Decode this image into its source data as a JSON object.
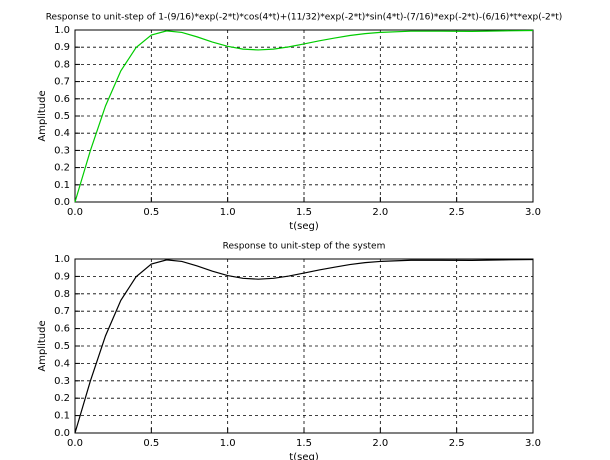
{
  "chart_data": [
    {
      "type": "line",
      "title": "Response to unit-step of 1-(9/16)*exp(-2*t)*cos(4*t)+(11/32)*exp(-2*t)*sin(4*t)-(7/16)*exp(-2*t)-(6/16)*t*exp(-2*t)",
      "x_label": "t(seg)",
      "y_label": "Amplitude",
      "x": [
        0,
        0.1,
        0.2,
        0.3,
        0.4,
        0.5,
        0.6,
        0.7,
        0.8,
        0.9,
        1.0,
        1.1,
        1.2,
        1.3,
        1.4,
        1.5,
        1.6,
        1.7,
        1.8,
        1.9,
        2.0,
        2.2,
        2.4,
        2.6,
        2.8,
        3.0
      ],
      "series": [
        {
          "color": "#00cc00",
          "values": [
            0,
            0.297,
            0.559,
            0.762,
            0.898,
            0.971,
            0.995,
            0.986,
            0.96,
            0.93,
            0.905,
            0.889,
            0.884,
            0.889,
            0.902,
            0.919,
            0.937,
            0.953,
            0.968,
            0.979,
            0.986,
            0.993,
            0.993,
            0.992,
            0.995,
            0.997
          ]
        }
      ],
      "xlim": [
        0,
        3
      ],
      "ylim": [
        0,
        1
      ],
      "xticks": [
        {
          "value": 0,
          "label": "0.0"
        },
        {
          "value": 0.5,
          "label": "0.5"
        },
        {
          "value": 1,
          "label": "1.0"
        },
        {
          "value": 1.5,
          "label": "1.5"
        },
        {
          "value": 2,
          "label": "2.0"
        },
        {
          "value": 2.5,
          "label": "2.5"
        },
        {
          "value": 3,
          "label": "3.0"
        }
      ],
      "yticks": [
        {
          "value": 0,
          "label": "0.0"
        },
        0.1,
        0.2,
        0.3,
        0.4,
        0.5,
        0.6,
        0.7,
        0.8,
        0.9,
        {
          "value": 1,
          "label": "1.0"
        }
      ],
      "grid": true
    },
    {
      "type": "line",
      "title": "Response to unit-step of the system",
      "x_label": "t(seg)",
      "y_label": "Amplitude",
      "x": [
        0,
        0.1,
        0.2,
        0.3,
        0.4,
        0.5,
        0.6,
        0.7,
        0.8,
        0.9,
        1.0,
        1.1,
        1.2,
        1.3,
        1.4,
        1.5,
        1.6,
        1.7,
        1.8,
        1.9,
        2.0,
        2.2,
        2.4,
        2.6,
        2.8,
        3.0
      ],
      "series": [
        {
          "color": "#000000",
          "values": [
            0,
            0.297,
            0.559,
            0.762,
            0.898,
            0.971,
            0.995,
            0.986,
            0.96,
            0.93,
            0.905,
            0.889,
            0.884,
            0.889,
            0.902,
            0.919,
            0.937,
            0.953,
            0.968,
            0.979,
            0.986,
            0.993,
            0.993,
            0.992,
            0.995,
            0.997
          ]
        }
      ],
      "xlim": [
        0,
        3
      ],
      "ylim": [
        0,
        1
      ],
      "xticks": [
        {
          "value": 0,
          "label": "0.0"
        },
        {
          "value": 0.5,
          "label": "0.5"
        },
        {
          "value": 1,
          "label": "1.0"
        },
        {
          "value": 1.5,
          "label": "1.5"
        },
        {
          "value": 2,
          "label": "2.0"
        },
        {
          "value": 2.5,
          "label": "2.5"
        },
        {
          "value": 3,
          "label": "3.0"
        }
      ],
      "yticks": [
        {
          "value": 0,
          "label": "0.0"
        },
        0.1,
        0.2,
        0.3,
        0.4,
        0.5,
        0.6,
        0.7,
        0.8,
        0.9,
        {
          "value": 1,
          "label": "1.0"
        }
      ],
      "grid": true
    }
  ]
}
